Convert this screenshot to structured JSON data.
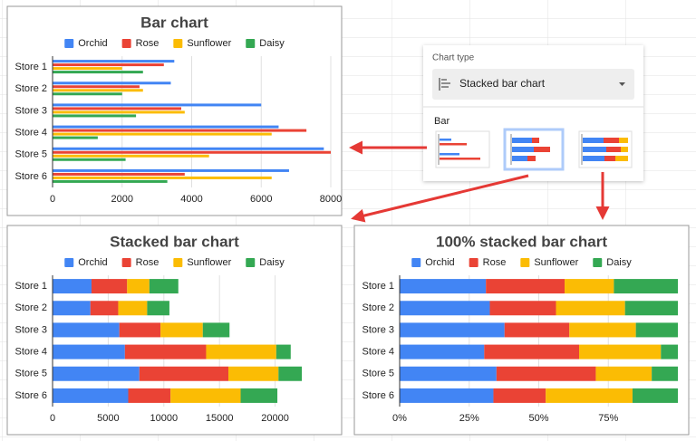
{
  "chart_data": [
    {
      "type": "bar",
      "title": "Bar chart",
      "categories": [
        "Store 1",
        "Store 2",
        "Store 3",
        "Store 4",
        "Store 5",
        "Store 6"
      ],
      "series": [
        {
          "name": "Orchid",
          "color": "#4285f4",
          "values": [
            3500,
            3400,
            6000,
            6500,
            7800,
            6800
          ]
        },
        {
          "name": "Rose",
          "color": "#ea4335",
          "values": [
            3200,
            2500,
            3700,
            7300,
            8000,
            3800
          ]
        },
        {
          "name": "Sunflower",
          "color": "#fbbc04",
          "values": [
            2000,
            2600,
            3800,
            6300,
            4500,
            6300
          ]
        },
        {
          "name": "Daisy",
          "color": "#34a853",
          "values": [
            2600,
            2000,
            2400,
            1300,
            2100,
            3300
          ]
        }
      ],
      "xlim": [
        0,
        8000
      ],
      "xticks": [
        0,
        2000,
        4000,
        6000,
        8000
      ],
      "grid": true,
      "legend": "top"
    },
    {
      "type": "stacked-bar",
      "title": "Stacked bar chart",
      "categories": [
        "Store 1",
        "Store 2",
        "Store 3",
        "Store 4",
        "Store 5",
        "Store 6"
      ],
      "series": [
        {
          "name": "Orchid",
          "color": "#4285f4",
          "values": [
            3500,
            3400,
            6000,
            6500,
            7800,
            6800
          ]
        },
        {
          "name": "Rose",
          "color": "#ea4335",
          "values": [
            3200,
            2500,
            3700,
            7300,
            8000,
            3800
          ]
        },
        {
          "name": "Sunflower",
          "color": "#fbbc04",
          "values": [
            2000,
            2600,
            3800,
            6300,
            4500,
            6300
          ]
        },
        {
          "name": "Daisy",
          "color": "#34a853",
          "values": [
            2600,
            2000,
            2400,
            1300,
            2100,
            3300
          ]
        }
      ],
      "xlim": [
        0,
        25000
      ],
      "xticks": [
        0,
        5000,
        10000,
        15000,
        20000
      ],
      "grid": true,
      "legend": "top"
    },
    {
      "type": "percent-bar",
      "title": "100% stacked bar chart",
      "categories": [
        "Store 1",
        "Store 2",
        "Store 3",
        "Store 4",
        "Store 5",
        "Store 6"
      ],
      "series": [
        {
          "name": "Orchid",
          "color": "#4285f4",
          "values": [
            31.0,
            32.4,
            37.7,
            30.4,
            34.8,
            33.7
          ]
        },
        {
          "name": "Rose",
          "color": "#ea4335",
          "values": [
            28.3,
            23.8,
            23.3,
            34.1,
            35.7,
            18.8
          ]
        },
        {
          "name": "Sunflower",
          "color": "#fbbc04",
          "values": [
            17.7,
            24.8,
            23.9,
            29.4,
            20.1,
            31.2
          ]
        },
        {
          "name": "Daisy",
          "color": "#34a853",
          "values": [
            23.0,
            19.0,
            15.1,
            6.1,
            9.4,
            16.3
          ]
        }
      ],
      "xlim": [
        0,
        100
      ],
      "xticks": [
        {
          "value": 0,
          "label": "0%"
        },
        {
          "value": 25,
          "label": "25%"
        },
        {
          "value": 50,
          "label": "50%"
        },
        {
          "value": 75,
          "label": "75%"
        }
      ],
      "grid": true,
      "legend": "top"
    }
  ],
  "panel": {
    "label": "Chart type",
    "selected": "Stacked bar chart",
    "section": "Bar"
  }
}
